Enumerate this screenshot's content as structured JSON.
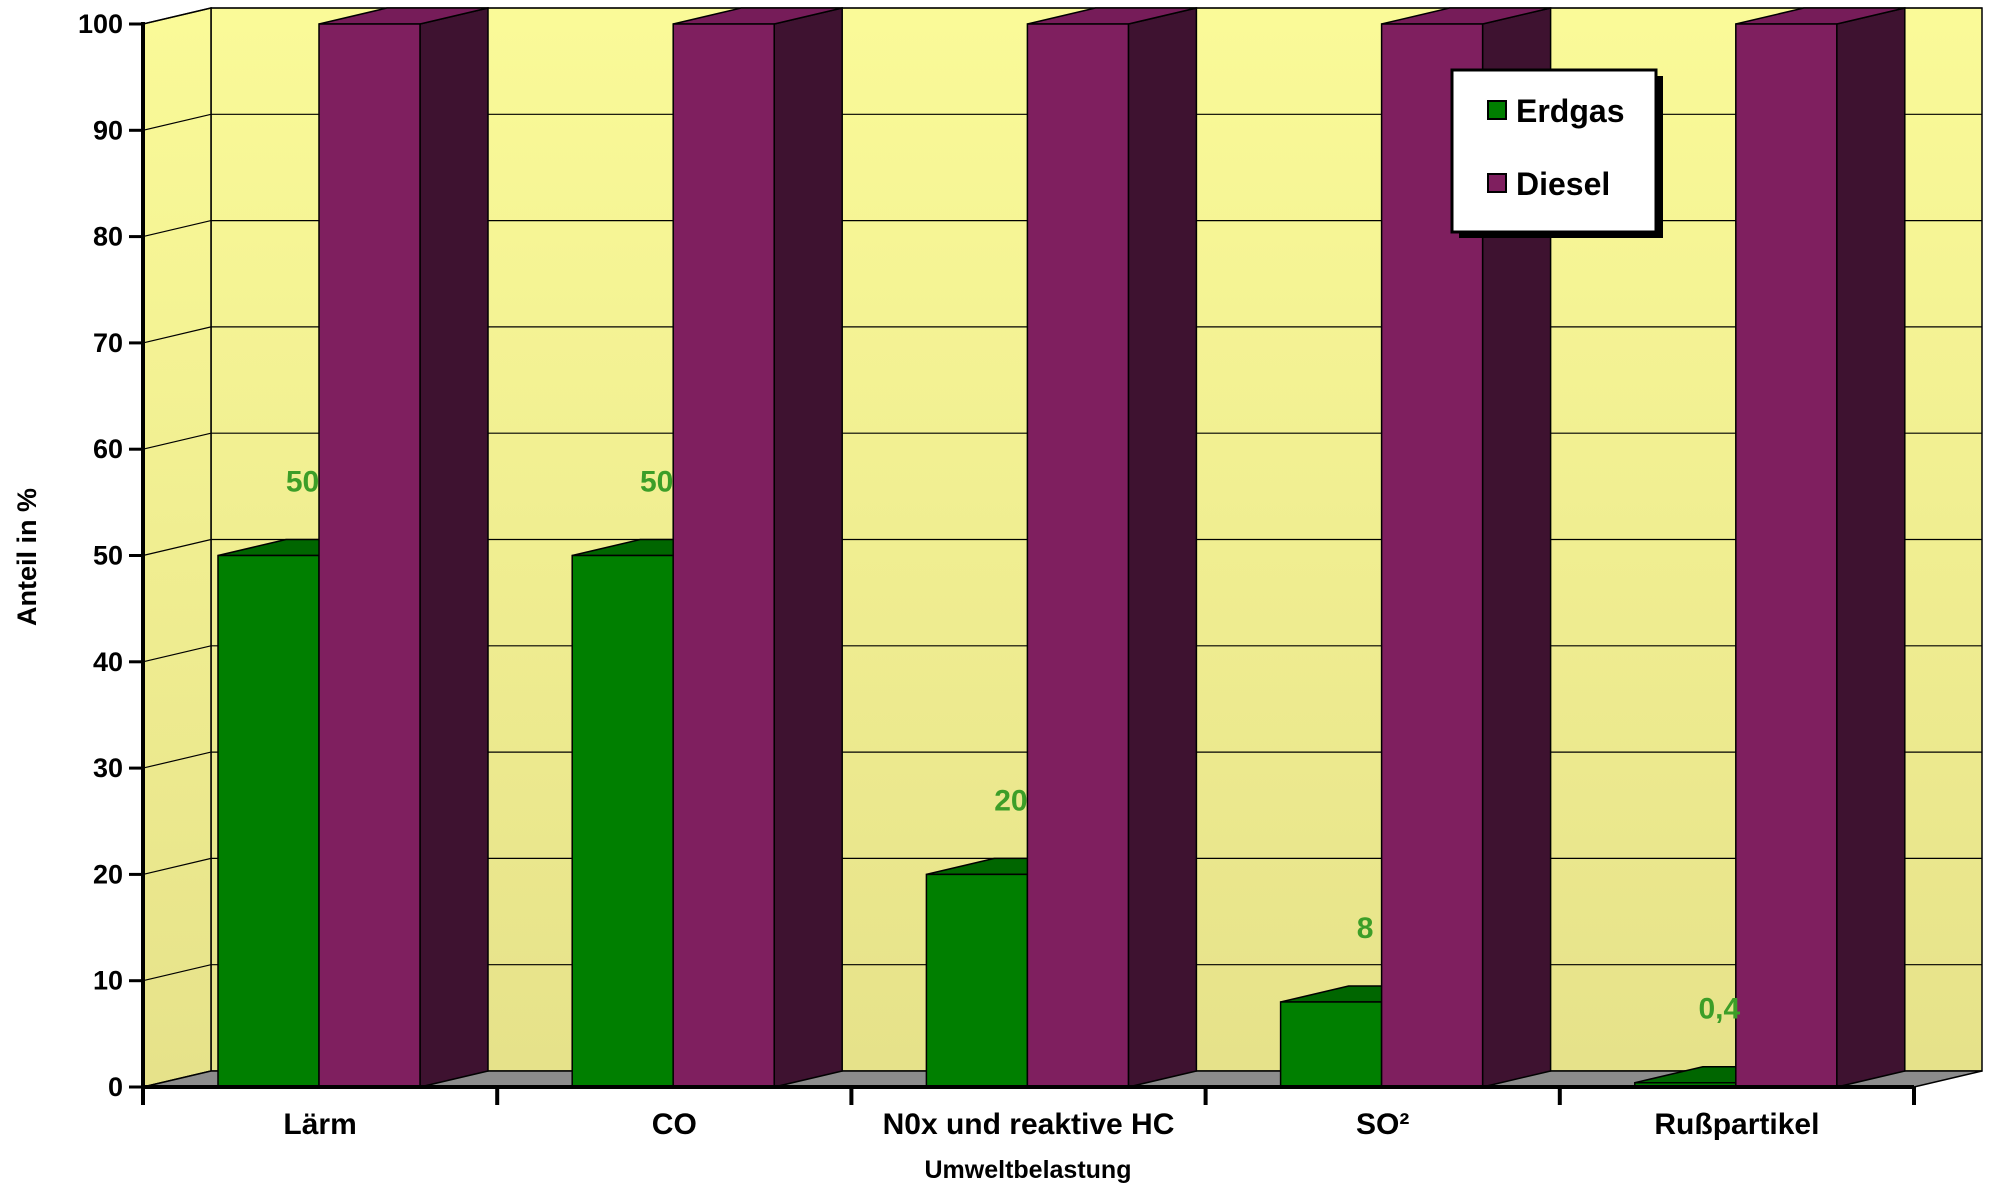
{
  "colors": {
    "background_top": "#FAFA98",
    "background_bottom": "#E6E28A",
    "floor": "#8C8C8C",
    "erdgas": "#007F00",
    "erdgas_top": "#006600",
    "erdgas_side": "#004800",
    "diesel": "#7F1F5F",
    "diesel_top": "#761C59",
    "diesel_side": "#3E1230",
    "data_label": "#3C9E28"
  },
  "chart_data": {
    "type": "bar",
    "style": "3d-clustered",
    "categories": [
      "Lärm",
      "CO",
      "N0x und reaktive HC",
      "SO²",
      "Rußpartikel"
    ],
    "series": [
      {
        "name": "Erdgas",
        "values": [
          50,
          50,
          20,
          8,
          0.4
        ]
      },
      {
        "name": "Diesel",
        "values": [
          100,
          100,
          100,
          100,
          100
        ]
      }
    ],
    "data_labels": [
      "50",
      "50",
      "20",
      "8",
      "0,4"
    ],
    "xlabel": "Umweltbelastung",
    "ylabel": "Anteil in %",
    "yticks": [
      "0",
      "10",
      "20",
      "30",
      "40",
      "50",
      "60",
      "70",
      "80",
      "90",
      "100"
    ],
    "ylim": [
      0,
      100
    ],
    "grid": true,
    "legend_position": "top-right"
  }
}
